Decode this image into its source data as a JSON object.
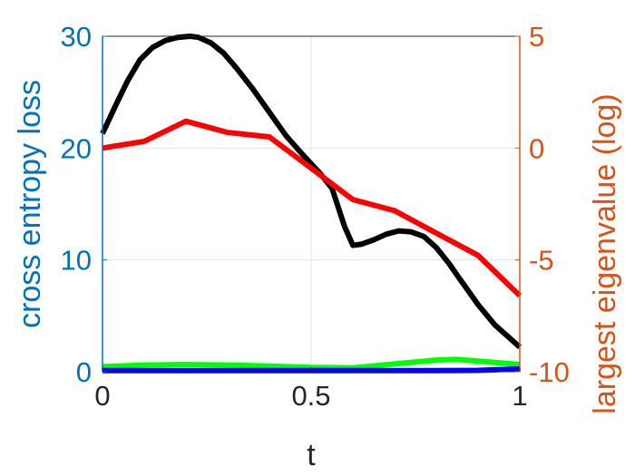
{
  "chart_data": {
    "type": "line",
    "xlabel": "t",
    "ylabel_left": "cross entropy loss",
    "ylabel_right": "largest eigenvalue (log)",
    "xlim": [
      0,
      1
    ],
    "ylim_left": [
      0,
      30
    ],
    "ylim_right": [
      -10,
      5
    ],
    "x_ticks": [
      0,
      0.5,
      1
    ],
    "x_tick_labels": [
      "0",
      "0.5",
      "1"
    ],
    "y_left_ticks": [
      0,
      10,
      20,
      30
    ],
    "y_left_tick_labels": [
      "0",
      "10",
      "20",
      "30"
    ],
    "y_right_ticks": [
      -10,
      -5,
      0,
      5
    ],
    "y_right_tick_labels": [
      "-10",
      "-5",
      "0",
      "5"
    ],
    "grid": true,
    "colors": {
      "left_axis": "#0072BD",
      "right_axis": "#D95319",
      "grid": "#dfe6ee",
      "box": "#262626"
    },
    "series": [
      {
        "axis": "left",
        "color": "#000000",
        "x": [
          0,
          0.03,
          0.06,
          0.09,
          0.12,
          0.15,
          0.18,
          0.21,
          0.23,
          0.26,
          0.29,
          0.32,
          0.36,
          0.4,
          0.44,
          0.48,
          0.52,
          0.55,
          0.58,
          0.6,
          0.62,
          0.65,
          0.68,
          0.71,
          0.74,
          0.77,
          0.8,
          0.83,
          0.86,
          0.9,
          0.94,
          0.97,
          1.0
        ],
        "y": [
          21.3,
          23.7,
          26.0,
          27.9,
          29.0,
          29.6,
          29.9,
          30.0,
          29.9,
          29.4,
          28.5,
          27.2,
          25.3,
          23.2,
          21.1,
          19.4,
          17.8,
          16.4,
          13.0,
          11.3,
          11.4,
          11.8,
          12.3,
          12.6,
          12.5,
          12.1,
          11.1,
          9.7,
          8.1,
          6.0,
          4.2,
          3.2,
          2.2
        ]
      },
      {
        "axis": "right",
        "color": "#ff0000",
        "x": [
          0,
          0.1,
          0.2,
          0.3,
          0.4,
          0.5,
          0.6,
          0.7,
          0.8,
          0.9,
          1.0
        ],
        "y": [
          0.0,
          0.3,
          1.2,
          0.7,
          0.5,
          -0.9,
          -2.3,
          -2.8,
          -3.8,
          -4.8,
          -6.6
        ]
      },
      {
        "axis": "left",
        "color": "#00ff00",
        "x": [
          0,
          0.1,
          0.2,
          0.3,
          0.4,
          0.5,
          0.6,
          0.7,
          0.8,
          0.85,
          0.9,
          1.0
        ],
        "y": [
          0.45,
          0.6,
          0.65,
          0.6,
          0.5,
          0.38,
          0.35,
          0.7,
          1.05,
          1.1,
          0.95,
          0.65
        ]
      },
      {
        "axis": "left",
        "color": "#0000ff",
        "x": [
          0,
          0.2,
          0.4,
          0.6,
          0.8,
          0.9,
          1.0
        ],
        "y": [
          0.1,
          0.1,
          0.1,
          0.1,
          0.1,
          0.12,
          0.25
        ]
      }
    ]
  }
}
